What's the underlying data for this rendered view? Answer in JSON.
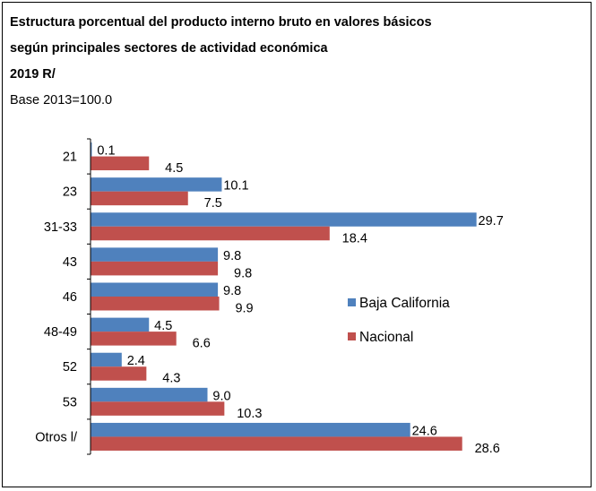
{
  "chart_data": {
    "type": "bar",
    "orientation": "horizontal",
    "title_lines": [
      "Estructura porcentual del producto interno bruto en valores básicos",
      "según principales sectores de actividad económica",
      "2019 R/"
    ],
    "subtitle": "Base 2013=100.0",
    "categories": [
      "21",
      "23",
      "31-33",
      "43",
      "46",
      "48-49",
      "52",
      "53",
      "Otros l/"
    ],
    "series": [
      {
        "name": "Baja California",
        "color": "#4f81bd",
        "values": [
          0.1,
          10.1,
          29.7,
          9.8,
          9.8,
          4.5,
          2.4,
          9.0,
          24.6
        ],
        "labels": [
          "0.1",
          "10.1",
          "29.7",
          "9.8",
          "9.8",
          "4.5",
          "2.4",
          "9.0",
          "24.6"
        ]
      },
      {
        "name": "Nacional",
        "color": "#c0504d",
        "values": [
          4.5,
          7.5,
          18.4,
          9.8,
          9.9,
          6.6,
          4.3,
          10.3,
          28.6
        ],
        "labels": [
          "4.5",
          "7.5",
          "18.4",
          "9.8",
          "9.9",
          "6.6",
          "4.3",
          "10.3",
          "28.6"
        ]
      }
    ],
    "xlim": [
      0,
      30.5
    ],
    "grid": false,
    "legend_position": "right"
  }
}
